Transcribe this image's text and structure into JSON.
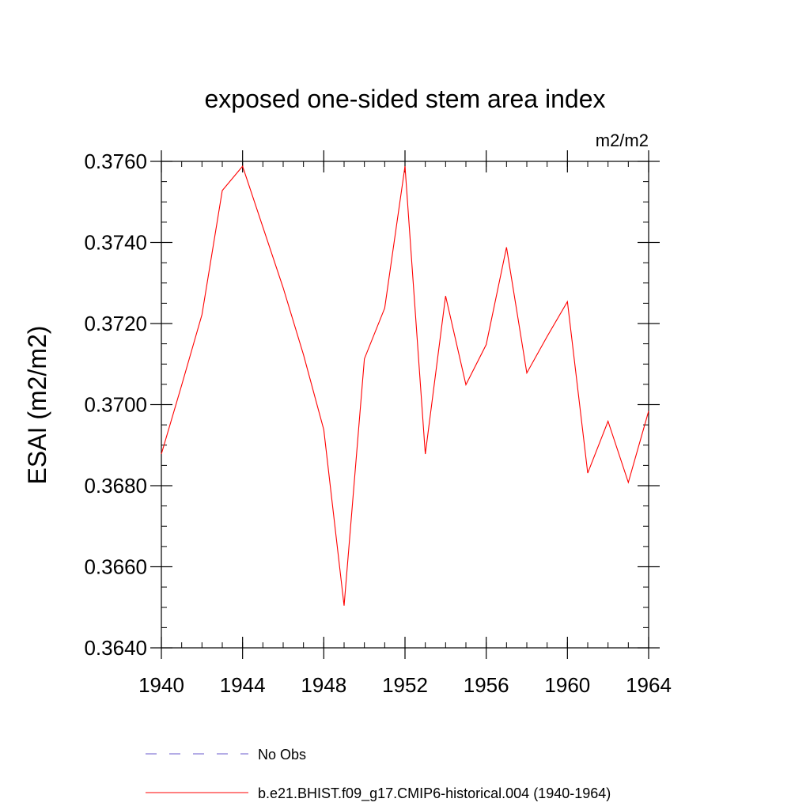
{
  "chart_data": {
    "type": "line",
    "title": "exposed one-sided stem area index",
    "units": "m2/m2",
    "ylabel": "ESAI  (m2/m2)",
    "xlabel": "",
    "xlim": [
      1940,
      1964
    ],
    "ylim": [
      0.364,
      0.376
    ],
    "x_ticks": [
      1940,
      1944,
      1948,
      1952,
      1956,
      1960,
      1964
    ],
    "x_tick_labels": [
      "1940",
      "1944",
      "1948",
      "1952",
      "1956",
      "1960",
      "1964"
    ],
    "y_ticks": [
      0.364,
      0.366,
      0.368,
      0.37,
      0.372,
      0.374,
      0.376
    ],
    "y_tick_labels": [
      "0.3640",
      "0.3660",
      "0.3680",
      "0.3700",
      "0.3720",
      "0.3740",
      "0.3760"
    ],
    "grid": false,
    "series": [
      {
        "name": "b.e21.BHIST.f09_g17.CMIP6-historical.004 (1940-1964)",
        "color": "#ff0000",
        "style": "solid",
        "x": [
          1940,
          1941,
          1942,
          1943,
          1944,
          1945,
          1946,
          1947,
          1948,
          1949,
          1950,
          1951,
          1952,
          1953,
          1954,
          1955,
          1956,
          1957,
          1958,
          1959,
          1960,
          1961,
          1962,
          1963,
          1964
        ],
        "values": [
          0.36878,
          0.37048,
          0.37222,
          0.37528,
          0.37588,
          0.37438,
          0.37288,
          0.37123,
          0.36938,
          0.36504,
          0.37113,
          0.37238,
          0.37588,
          0.36878,
          0.37268,
          0.37049,
          0.37148,
          0.37388,
          0.37078,
          0.37168,
          0.37254,
          0.36831,
          0.36959,
          0.36808,
          0.36984
        ]
      }
    ],
    "legend": [
      {
        "label": "No Obs",
        "color": "#6a5acd",
        "style": "dashed"
      },
      {
        "label": "b.e21.BHIST.f09_g17.CMIP6-historical.004 (1940-1964)",
        "color": "#ff0000",
        "style": "solid"
      }
    ],
    "legend_position": "bottom"
  }
}
